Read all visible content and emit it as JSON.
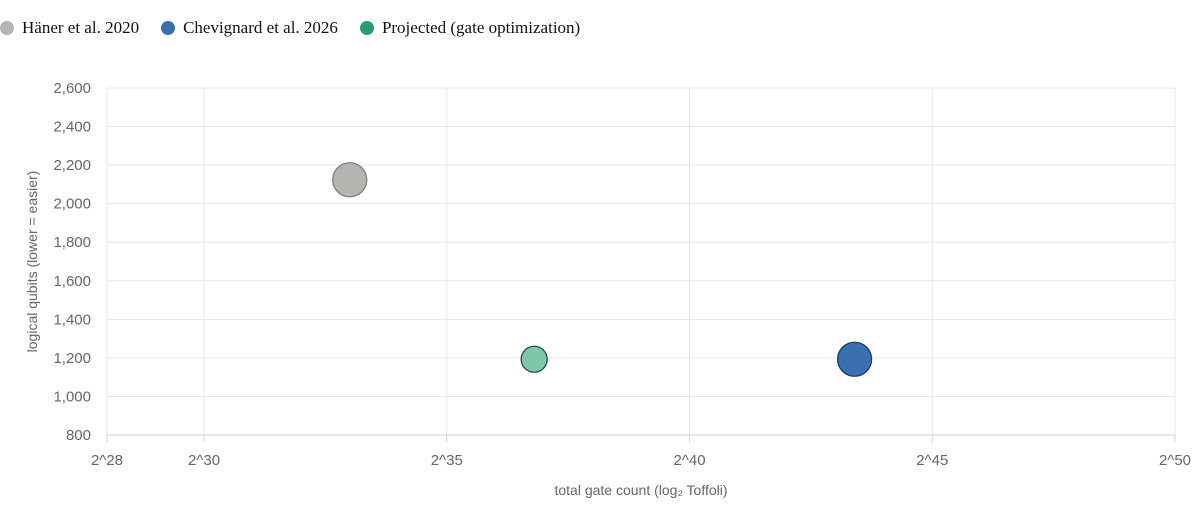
{
  "legend": {
    "items": [
      {
        "label": "Häner et al. 2020",
        "color": "#b5b5b1"
      },
      {
        "label": "Chevignard et al. 2026",
        "color": "#3a6fb0"
      },
      {
        "label": "Projected (gate optimization)",
        "color": "#2a9a72"
      }
    ]
  },
  "chart_data": {
    "type": "scatter",
    "xlabel": "total gate count (log₂ Toffoli)",
    "ylabel": "logical qubits  (lower = easier)",
    "xlim": [
      28,
      50
    ],
    "ylim": [
      800,
      2600
    ],
    "x_log_base": 2,
    "x_ticks": [
      28,
      30,
      35,
      40,
      45,
      50
    ],
    "x_tick_labels": [
      "2^28",
      "2^30",
      "2^35",
      "2^40",
      "2^45",
      "2^50"
    ],
    "y_ticks": [
      800,
      1000,
      1200,
      1400,
      1600,
      1800,
      2000,
      2200,
      2400,
      2600
    ],
    "y_tick_labels": [
      "800",
      "1,000",
      "1,200",
      "1,400",
      "1,600",
      "1,800",
      "2,000",
      "2,200",
      "2,400",
      "2,600"
    ],
    "grid": true,
    "legend_position": "top-left",
    "series": [
      {
        "name": "Häner et al. 2020",
        "color": "#b5b5b1",
        "x": 33,
        "y": 2124
      },
      {
        "name": "Chevignard et al. 2026",
        "color": "#3a6fb0",
        "x": 43.4,
        "y": 1193
      },
      {
        "name": "Projected (gate optimization)",
        "color": "#7fc7ab",
        "stroke": "#1f4f3c",
        "x": 36.8,
        "y": 1193
      }
    ]
  }
}
